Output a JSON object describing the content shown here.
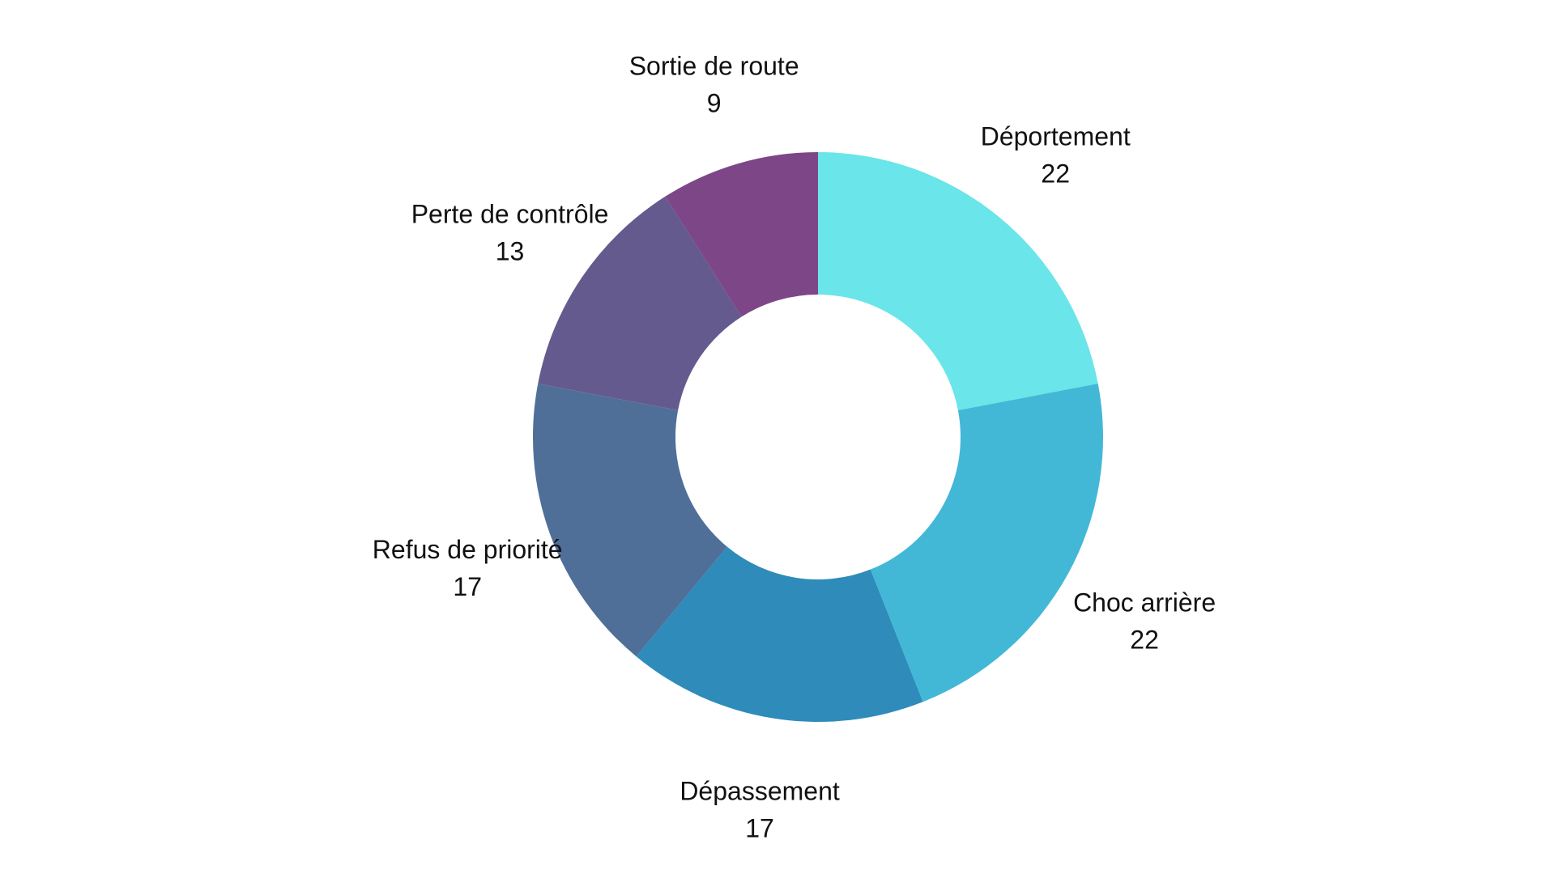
{
  "chart_data": {
    "type": "pie",
    "donut": true,
    "title": "",
    "categories": [
      "Déportement",
      "Choc arrière",
      "Dépassement",
      "Refus de priorité",
      "Perte de contrôle",
      "Sortie de route"
    ],
    "values": [
      22,
      22,
      17,
      17,
      13,
      9
    ],
    "value_labels": [
      "22",
      "22",
      "17",
      "17",
      "13",
      "9"
    ],
    "colors": [
      "#6ae5e9",
      "#42b8d6",
      "#2e8bba",
      "#4f6f99",
      "#645a8e",
      "#7d4686"
    ],
    "start_angle_deg": 0,
    "direction": "clockwise",
    "legend": "none",
    "labels_position": "outside"
  }
}
